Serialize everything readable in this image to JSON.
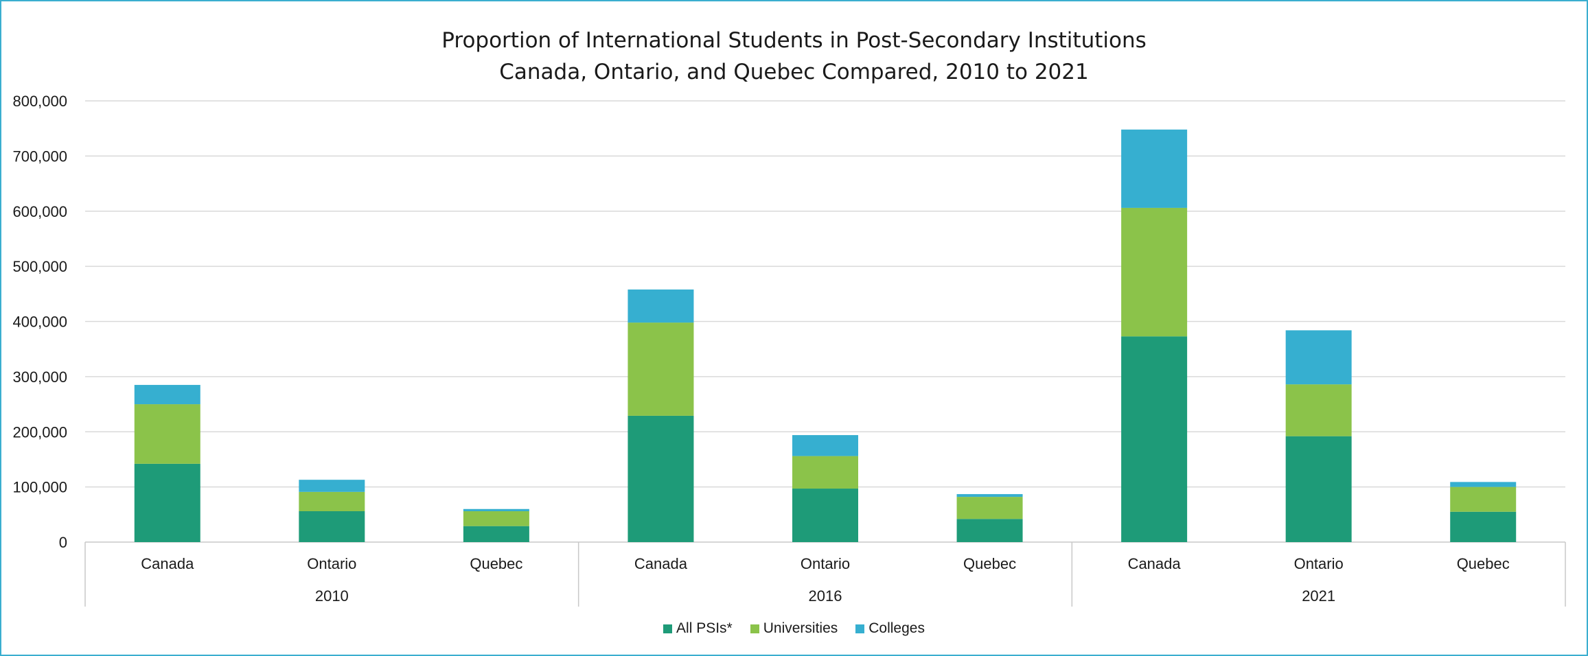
{
  "chart_data": {
    "type": "bar",
    "stacked": true,
    "title": "Proportion of International Students in Post-Secondary Institutions",
    "subtitle": "Canada, Ontario, and Quebec Compared, 2010 to 2021",
    "groups": [
      "2010",
      "2016",
      "2021"
    ],
    "categories": [
      "Canada",
      "Ontario",
      "Quebec",
      "Canada",
      "Ontario",
      "Quebec",
      "Canada",
      "Ontario",
      "Quebec"
    ],
    "group_of_category": [
      0,
      0,
      0,
      1,
      1,
      1,
      2,
      2,
      2
    ],
    "series": [
      {
        "name": "All PSIs*",
        "color": "#1e9b78",
        "values": [
          142000,
          56000,
          29000,
          229000,
          97000,
          42000,
          373000,
          192000,
          55000
        ]
      },
      {
        "name": "Universities",
        "color": "#8bc34a",
        "values": [
          108000,
          35000,
          27000,
          169000,
          59000,
          40000,
          233000,
          94000,
          45000
        ]
      },
      {
        "name": "Colleges",
        "color": "#36afd0",
        "values": [
          35000,
          22000,
          4000,
          60000,
          38000,
          5000,
          142000,
          98000,
          9000
        ]
      }
    ],
    "y_ticks": [
      "0",
      "100,000",
      "200,000",
      "300,000",
      "400,000",
      "500,000",
      "600,000",
      "700,000",
      "800,000"
    ],
    "ylim": [
      0,
      800000
    ],
    "grid": true,
    "legend_position": "bottom"
  }
}
